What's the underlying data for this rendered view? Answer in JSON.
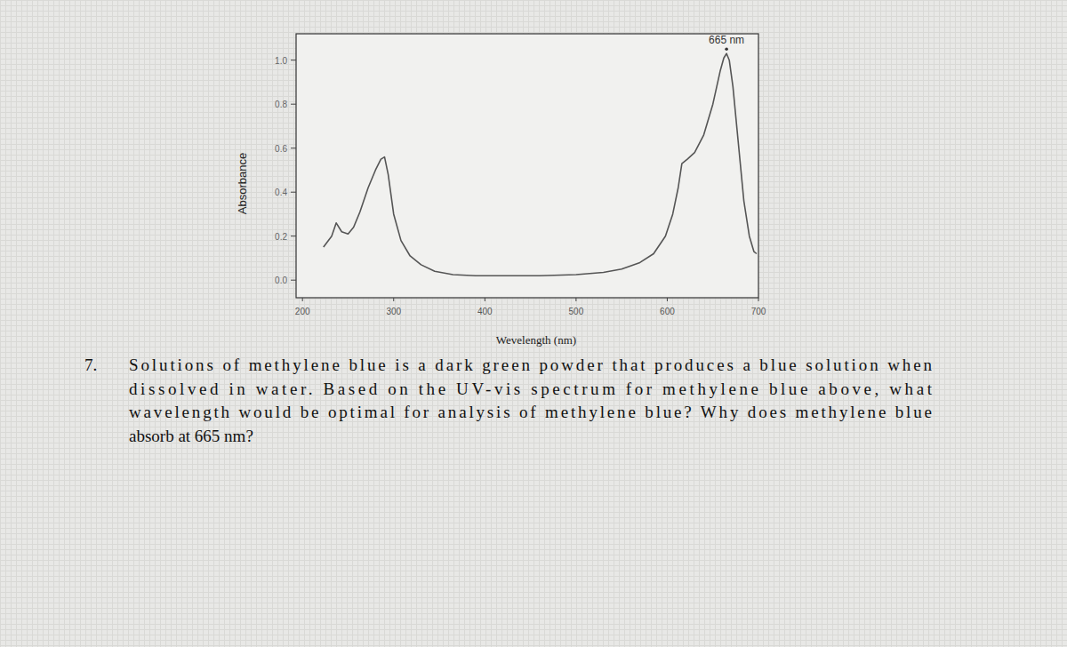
{
  "chart_data": {
    "type": "line",
    "x_label": "Wevelength (nm)",
    "y_label": "Absorbance",
    "xlim": [
      193,
      700
    ],
    "ylim": [
      -0.08,
      1.12
    ],
    "xticks": [
      200,
      300,
      400,
      500,
      600,
      700
    ],
    "yticks": [
      {
        "value": 0,
        "label": "0.0"
      },
      {
        "value": 0.2,
        "label": "0.2"
      },
      {
        "value": 0.4,
        "label": "0.4"
      },
      {
        "value": 0.6,
        "label": "0.6"
      },
      {
        "value": 0.8,
        "label": "0.8"
      },
      {
        "value": 1,
        "label": "1.0"
      }
    ],
    "grid": false,
    "color": "#555555",
    "series": [
      {
        "name": "methylene blue",
        "x": [
          223,
          232,
          237,
          243,
          250,
          256,
          263,
          272,
          280,
          286,
          290,
          294,
          300,
          308,
          318,
          330,
          345,
          365,
          390,
          420,
          460,
          500,
          530,
          550,
          570,
          585,
          598,
          606,
          612,
          616,
          622,
          630,
          640,
          650,
          658,
          662,
          665,
          668,
          672,
          678,
          684,
          690,
          695,
          698
        ],
        "values": [
          0.15,
          0.2,
          0.26,
          0.22,
          0.21,
          0.24,
          0.31,
          0.42,
          0.5,
          0.55,
          0.56,
          0.48,
          0.3,
          0.18,
          0.11,
          0.07,
          0.04,
          0.025,
          0.02,
          0.02,
          0.02,
          0.025,
          0.035,
          0.05,
          0.08,
          0.12,
          0.2,
          0.3,
          0.42,
          0.53,
          0.55,
          0.58,
          0.66,
          0.8,
          0.95,
          1.01,
          1.03,
          1.0,
          0.88,
          0.62,
          0.36,
          0.2,
          0.13,
          0.12
        ]
      }
    ],
    "annotations": [
      {
        "text": "665 nm",
        "x": 665,
        "y": 1.03
      }
    ]
  },
  "question": {
    "number": "7.",
    "lines": [
      "Solutions of methylene blue is a dark green powder that produces a blue solution when",
      "dissolved in water.  Based on the UV-vis spectrum for methylene blue above, what",
      "wavelength would be optimal for analysis of methylene blue?  Why does methylene blue",
      "absorb at 665 nm?"
    ]
  }
}
